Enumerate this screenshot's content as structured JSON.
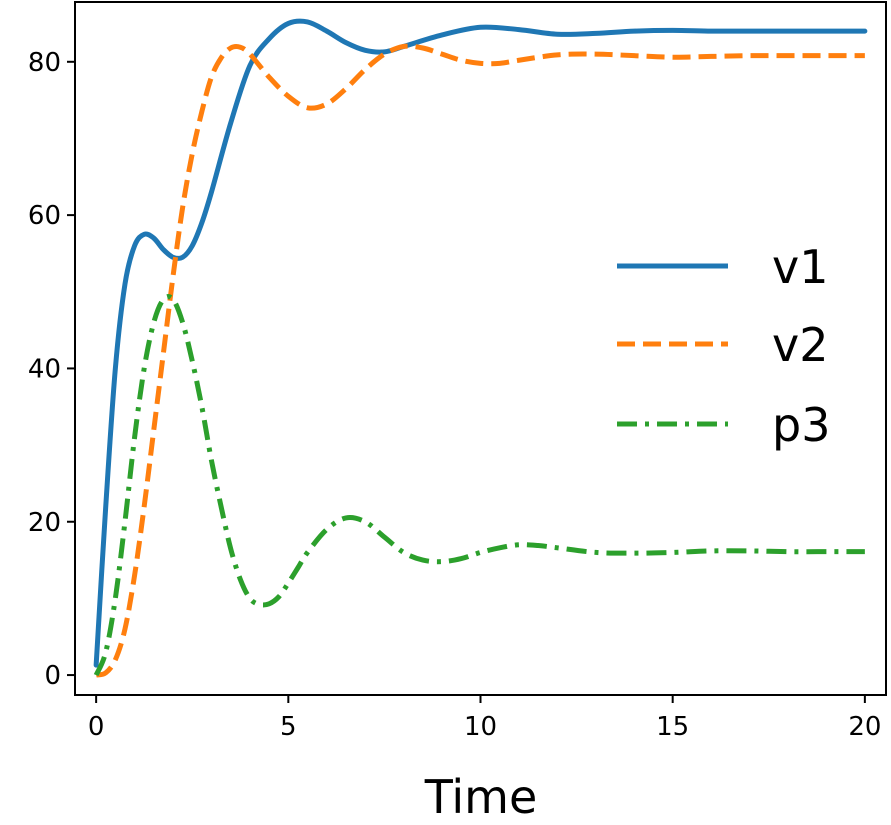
{
  "chart_data": {
    "type": "line",
    "title": "",
    "xlabel": "Time",
    "ylabel": "",
    "xlim": [
      -0.55,
      20.55
    ],
    "ylim": [
      -2.6,
      87.8
    ],
    "xticks": [
      0,
      5,
      10,
      15,
      20
    ],
    "yticks": [
      0,
      20,
      40,
      60,
      80
    ],
    "xtick_labels": [
      "0",
      "5",
      "10",
      "15",
      "20"
    ],
    "ytick_labels": [
      "0",
      "20",
      "40",
      "60",
      "80"
    ],
    "grid": false,
    "legend": {
      "position": "center-right"
    },
    "series": [
      {
        "name": "v1",
        "color": "#1f77b4",
        "style": "solid",
        "x": [
          0,
          0.25,
          0.5,
          0.75,
          1,
          1.25,
          1.5,
          1.75,
          2,
          2.25,
          2.5,
          2.75,
          3,
          3.5,
          4,
          4.5,
          5,
          5.5,
          6,
          6.5,
          7,
          7.5,
          8,
          9,
          10,
          11,
          12,
          13,
          14,
          15,
          16,
          17,
          18,
          19,
          20
        ],
        "y": [
          1.3,
          22,
          40,
          51,
          56,
          57.5,
          57,
          55.5,
          54.5,
          54.5,
          56,
          59,
          63,
          72,
          79.5,
          83,
          85,
          85.2,
          84,
          82.5,
          81.5,
          81.3,
          82,
          83.5,
          84.5,
          84.2,
          83.6,
          83.7,
          84,
          84.1,
          84,
          84,
          84,
          84,
          84
        ]
      },
      {
        "name": "v2",
        "color": "#ff7f0e",
        "style": "dashed",
        "x": [
          0,
          0.25,
          0.5,
          0.75,
          1,
          1.25,
          1.5,
          1.75,
          2,
          2.25,
          2.5,
          2.75,
          3,
          3.25,
          3.5,
          3.75,
          4,
          4.5,
          5,
          5.5,
          6,
          6.5,
          7,
          7.5,
          8,
          8.5,
          9,
          9.5,
          10,
          10.5,
          11,
          12,
          13,
          14,
          15,
          16,
          17,
          18,
          19,
          20
        ],
        "y": [
          0,
          0.3,
          2,
          6,
          13,
          22,
          32,
          42,
          52,
          61,
          68,
          73.5,
          78,
          80.5,
          81.8,
          81.9,
          81,
          78,
          75.5,
          74,
          74.5,
          76.5,
          79,
          81,
          82,
          81.8,
          81,
          80.2,
          79.8,
          79.8,
          80.2,
          80.9,
          81,
          80.8,
          80.6,
          80.7,
          80.8,
          80.8,
          80.8,
          80.8
        ]
      },
      {
        "name": "p3",
        "color": "#2ca02c",
        "style": "dashdot",
        "x": [
          0,
          0.25,
          0.5,
          0.75,
          1,
          1.25,
          1.5,
          1.75,
          2,
          2.25,
          2.5,
          2.75,
          3,
          3.25,
          3.5,
          3.75,
          4,
          4.25,
          4.5,
          4.75,
          5,
          5.25,
          5.5,
          6,
          6.5,
          7,
          7.5,
          8,
          8.5,
          9,
          9.5,
          10,
          10.5,
          11,
          11.5,
          12,
          13,
          14,
          15,
          16,
          17,
          18,
          19,
          20
        ],
        "y": [
          0,
          3,
          10,
          20,
          31,
          40,
          46,
          49,
          49,
          46,
          41,
          35,
          28,
          22,
          16.5,
          12.5,
          10,
          9.2,
          9.3,
          10.2,
          12,
          14,
          16,
          19,
          20.5,
          20,
          18,
          16,
          15,
          14.8,
          15.2,
          16,
          16.6,
          17,
          16.9,
          16.6,
          16,
          15.9,
          16,
          16.2,
          16.2,
          16.1,
          16.1,
          16.1
        ]
      }
    ]
  }
}
